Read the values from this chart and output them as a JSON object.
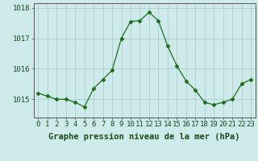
{
  "hours": [
    0,
    1,
    2,
    3,
    4,
    5,
    6,
    7,
    8,
    9,
    10,
    11,
    12,
    13,
    14,
    15,
    16,
    17,
    18,
    19,
    20,
    21,
    22,
    23
  ],
  "pressure": [
    1015.2,
    1015.1,
    1015.0,
    1015.0,
    1014.9,
    1014.75,
    1015.35,
    1015.65,
    1015.95,
    1017.0,
    1017.55,
    1017.58,
    1017.85,
    1017.58,
    1016.75,
    1016.1,
    1015.6,
    1015.3,
    1014.9,
    1014.82,
    1014.9,
    1015.0,
    1015.5,
    1015.65
  ],
  "line_color": "#1a6e1a",
  "marker": "D",
  "marker_size": 2.5,
  "background_color": "#ceeaea",
  "grid_color_major": "#a8c8c8",
  "grid_color_minor": "#b8d8d8",
  "xlabel": "Graphe pression niveau de la mer (hPa)",
  "xlabel_fontsize": 7.5,
  "tick_fontsize": 6.5,
  "ylim": [
    1014.4,
    1018.15
  ],
  "yticks": [
    1015,
    1016,
    1017,
    1018
  ],
  "title": ""
}
